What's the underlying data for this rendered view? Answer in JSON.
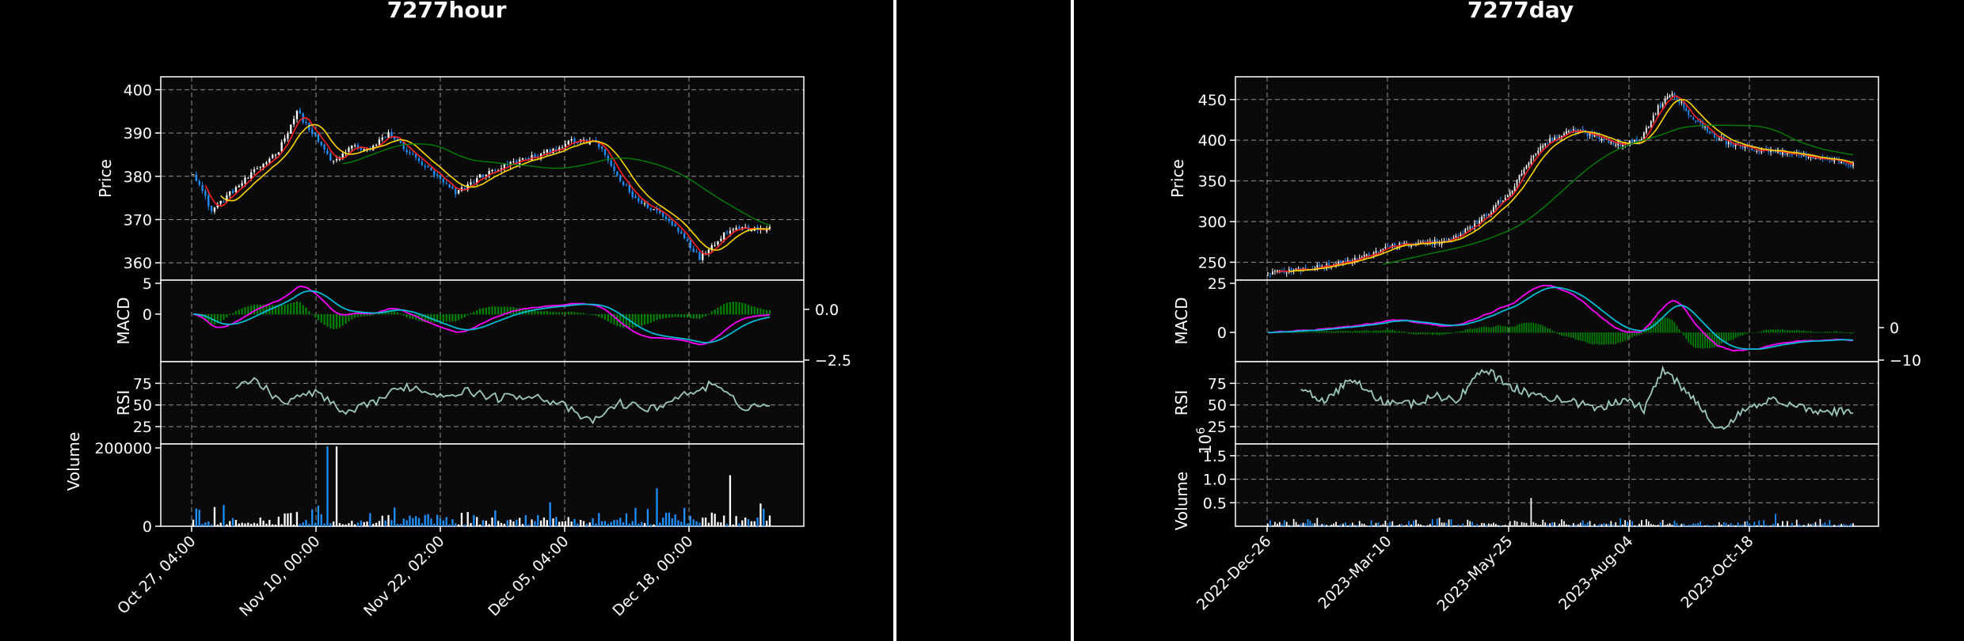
{
  "charts": [
    {
      "id": "hour",
      "title": "7277hour",
      "price_label": "Price",
      "price_ticks": [
        360,
        370,
        380,
        390,
        400
      ],
      "price_range": [
        356,
        403
      ],
      "macd_label": "MACD",
      "macd_left_ticks": [
        "0",
        "5"
      ],
      "macd_right_ticks": [
        "0.0",
        "−2.5"
      ],
      "rsi_label": "RSI",
      "rsi_ticks": [
        25,
        50,
        75
      ],
      "volume_label": "Volume",
      "volume_ticks": [
        "0",
        "200000"
      ],
      "volume_exponent": "",
      "x_ticks": [
        "Oct 27, 04:00",
        "Nov 10, 00:00",
        "Nov 22, 02:00",
        "Dec 05, 04:00",
        "Dec 18, 00:00"
      ],
      "n_bars": 190,
      "close_keypoints": [
        [
          0,
          381
        ],
        [
          6,
          372
        ],
        [
          12,
          376
        ],
        [
          20,
          381
        ],
        [
          28,
          386
        ],
        [
          34,
          395
        ],
        [
          40,
          389
        ],
        [
          46,
          383
        ],
        [
          52,
          387
        ],
        [
          58,
          386
        ],
        [
          64,
          390
        ],
        [
          70,
          386
        ],
        [
          78,
          381
        ],
        [
          86,
          376
        ],
        [
          94,
          380
        ],
        [
          104,
          383
        ],
        [
          114,
          385
        ],
        [
          124,
          388
        ],
        [
          132,
          388
        ],
        [
          140,
          379
        ],
        [
          146,
          374
        ],
        [
          152,
          372
        ],
        [
          160,
          367
        ],
        [
          166,
          361
        ],
        [
          170,
          364
        ],
        [
          176,
          368
        ],
        [
          182,
          368
        ],
        [
          189,
          368
        ]
      ],
      "rsi_keypoints": [
        [
          0,
          47
        ],
        [
          8,
          70
        ],
        [
          20,
          78
        ],
        [
          30,
          52
        ],
        [
          40,
          66
        ],
        [
          50,
          38
        ],
        [
          60,
          55
        ],
        [
          70,
          72
        ],
        [
          80,
          62
        ],
        [
          90,
          66
        ],
        [
          100,
          58
        ],
        [
          110,
          62
        ],
        [
          120,
          52
        ],
        [
          130,
          30
        ],
        [
          140,
          52
        ],
        [
          150,
          45
        ],
        [
          160,
          60
        ],
        [
          170,
          74
        ],
        [
          180,
          48
        ],
        [
          189,
          50
        ]
      ],
      "volume_range": [
        0,
        200000
      ],
      "macd_range": [
        -7,
        5
      ]
    },
    {
      "id": "day",
      "title": "7277day",
      "price_label": "Price",
      "price_ticks": [
        250,
        300,
        350,
        400,
        450
      ],
      "price_range": [
        228,
        478
      ],
      "macd_label": "MACD",
      "macd_left_ticks": [
        "0",
        "25"
      ],
      "macd_right_ticks": [
        "0",
        "−10"
      ],
      "rsi_label": "RSI",
      "rsi_ticks": [
        25,
        50,
        75
      ],
      "volume_label": "Volume",
      "volume_ticks": [
        "0.5",
        "1.0",
        "1.5"
      ],
      "volume_exponent": "10",
      "volume_exponent_power": "6",
      "x_ticks": [
        "2022-Dec-26",
        "2023-Mar-10",
        "2023-May-25",
        "2023-Aug-04",
        "2023-Oct-18"
      ],
      "n_bars": 250,
      "close_keypoints": [
        [
          0,
          237
        ],
        [
          20,
          243
        ],
        [
          40,
          255
        ],
        [
          52,
          270
        ],
        [
          62,
          272
        ],
        [
          72,
          275
        ],
        [
          80,
          280
        ],
        [
          92,
          305
        ],
        [
          104,
          340
        ],
        [
          112,
          380
        ],
        [
          120,
          400
        ],
        [
          130,
          412
        ],
        [
          140,
          405
        ],
        [
          150,
          395
        ],
        [
          158,
          398
        ],
        [
          166,
          440
        ],
        [
          172,
          460
        ],
        [
          180,
          430
        ],
        [
          190,
          405
        ],
        [
          200,
          392
        ],
        [
          210,
          388
        ],
        [
          220,
          385
        ],
        [
          232,
          380
        ],
        [
          249,
          370
        ]
      ],
      "rsi_keypoints": [
        [
          0,
          50
        ],
        [
          12,
          70
        ],
        [
          24,
          55
        ],
        [
          36,
          80
        ],
        [
          48,
          55
        ],
        [
          60,
          50
        ],
        [
          72,
          60
        ],
        [
          80,
          55
        ],
        [
          92,
          92
        ],
        [
          104,
          70
        ],
        [
          116,
          60
        ],
        [
          128,
          55
        ],
        [
          140,
          45
        ],
        [
          152,
          58
        ],
        [
          160,
          45
        ],
        [
          168,
          92
        ],
        [
          180,
          60
        ],
        [
          192,
          20
        ],
        [
          204,
          50
        ],
        [
          216,
          55
        ],
        [
          228,
          45
        ],
        [
          249,
          42
        ]
      ],
      "volume_range": [
        0,
        1.75
      ],
      "macd_range": [
        -14,
        25
      ]
    }
  ],
  "colors": {
    "background": "#000000",
    "plot_bg": "#0a0a0a",
    "up": "#ffffff",
    "down": "#1e90ff",
    "ma_fast": "#ff2020",
    "ma_mid": "#ffd700",
    "ma_slow": "#008000",
    "macd_line": "#ff00ff",
    "signal_line": "#00bcd4",
    "hist": "#008000",
    "rsi": "#9ec9c0"
  }
}
